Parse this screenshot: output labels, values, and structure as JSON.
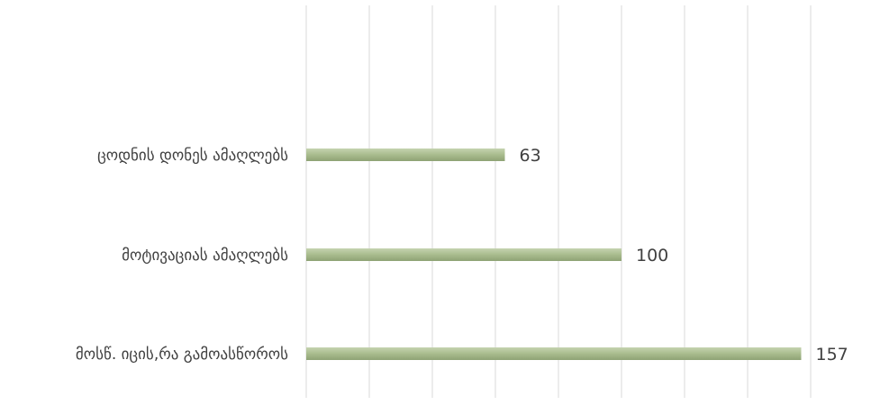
{
  "chart_data": {
    "type": "bar",
    "orientation": "horizontal",
    "categories": [
      "ცოდნის დონეს ამაღლებს",
      "მოტივაციას ამაღლებს",
      "მოსწ. იცის,რა გამოასწოროს"
    ],
    "values": [
      63,
      100,
      157
    ],
    "title": "",
    "xlabel": "",
    "ylabel": "",
    "xlim": [
      0,
      180
    ],
    "grid": true,
    "legend": "none",
    "data_labels": true,
    "colors": {
      "bar_light": "#c5d3b0",
      "bar_mid": "#a9bc8e",
      "bar_dark": "#8ea274",
      "gridline": "#d9d9d9",
      "label_text": "#404040"
    }
  }
}
